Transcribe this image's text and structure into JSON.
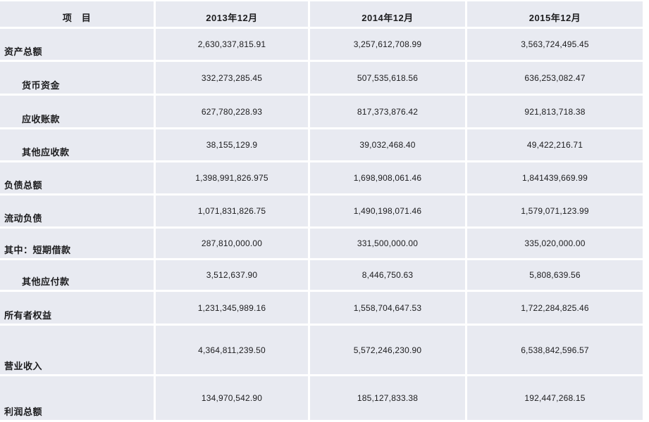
{
  "chart_data": {
    "type": "table",
    "title": "",
    "columns": [
      "项　目",
      "2013年12月",
      "2014年12月",
      "2015年12月"
    ],
    "rows": [
      {
        "label": "资产总额",
        "indent": false,
        "values": [
          "2,630,337,815.91",
          "3,257,612,708.99",
          "3,563,724,495.45"
        ]
      },
      {
        "label": "货币资金",
        "indent": true,
        "values": [
          "332,273,285.45",
          "507,535,618.56",
          "636,253,082.47"
        ]
      },
      {
        "label": "应收账款",
        "indent": true,
        "values": [
          "627,780,228.93",
          "817,373,876.42",
          "921,813,718.38"
        ]
      },
      {
        "label": "其他应收款",
        "indent": true,
        "values": [
          "38,155,129.9",
          "39,032,468.40",
          "49,422,216.71"
        ]
      },
      {
        "label": "负债总额",
        "indent": false,
        "values": [
          "1,398,991,826.975",
          "1,698,908,061.46",
          "1,841439,669.99"
        ]
      },
      {
        "label": "流动负债",
        "indent": false,
        "values": [
          "1,071,831,826.75",
          "1,490,198,071.46",
          "1,579,071,123.99"
        ]
      },
      {
        "label": "其中：短期借款",
        "indent": false,
        "values": [
          "287,810,000.00",
          "331,500,000.00",
          "335,020,000.00"
        ]
      },
      {
        "label": "其他应付款",
        "indent": true,
        "values": [
          "3,512,637.90",
          "8,446,750.63",
          "5,808,639.56"
        ]
      },
      {
        "label": "所有者权益",
        "indent": false,
        "values": [
          "1,231,345,989.16",
          "1,558,704,647.53",
          "1,722,284,825.46"
        ]
      },
      {
        "label": "营业收入",
        "indent": false,
        "values": [
          "4,364,811,239.50",
          "5,572,246,230.90",
          "6,538,842,596.57"
        ]
      },
      {
        "label": "利润总额",
        "indent": false,
        "values": [
          "134,970,542.90",
          "185,127,833.38",
          "192,447,268.15"
        ]
      }
    ],
    "layout": {
      "legend": "none",
      "grid": "on"
    },
    "colors": {
      "cell_background": "#e8eaf1",
      "gridline": "#ffffff",
      "text": "#1c1c1e"
    }
  }
}
